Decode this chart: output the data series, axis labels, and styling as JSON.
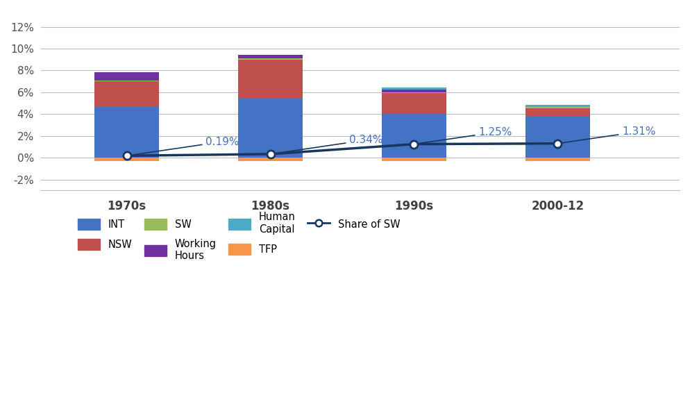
{
  "categories": [
    "1970s",
    "1980s",
    "1990s",
    "2000-12"
  ],
  "INT": [
    0.0465,
    0.0545,
    0.0405,
    0.038
  ],
  "NSW": [
    0.0235,
    0.0355,
    0.0185,
    0.0075
  ],
  "SW": [
    0.001,
    0.001,
    0.001,
    0.0008
  ],
  "Working_Hours": [
    0.0075,
    0.0035,
    0.0025,
    0.0005
  ],
  "Human_Capital": [
    0.0,
    0.0,
    0.0018,
    0.0015
  ],
  "TFP": [
    -0.003,
    -0.003,
    -0.003,
    -0.003
  ],
  "share_of_sw": [
    0.0019,
    0.0034,
    0.0125,
    0.0131
  ],
  "label_texts": [
    "0.19%",
    "0.34%",
    "1.25%",
    "1.31%"
  ],
  "INT_color": "#4472C4",
  "NSW_color": "#C0504D",
  "SW_color": "#9BBB59",
  "Working_Hours_color": "#7030A0",
  "Human_Capital_color": "#4BACC6",
  "TFP_color": "#F79646",
  "line_color": "#17375E",
  "annotation_color": "#4472C4",
  "background_color": "#FFFFFF",
  "grid_color": "#BBBBBB",
  "yticks": [
    -0.02,
    0.0,
    0.02,
    0.04,
    0.06,
    0.08,
    0.1,
    0.12
  ],
  "ytick_labels": [
    "-2%",
    "0%",
    "2%",
    "4%",
    "6%",
    "8%",
    "10%",
    "12%"
  ],
  "ylim": [
    -0.03,
    0.135
  ],
  "xlim": [
    -0.6,
    3.85
  ],
  "bar_width": 0.45
}
